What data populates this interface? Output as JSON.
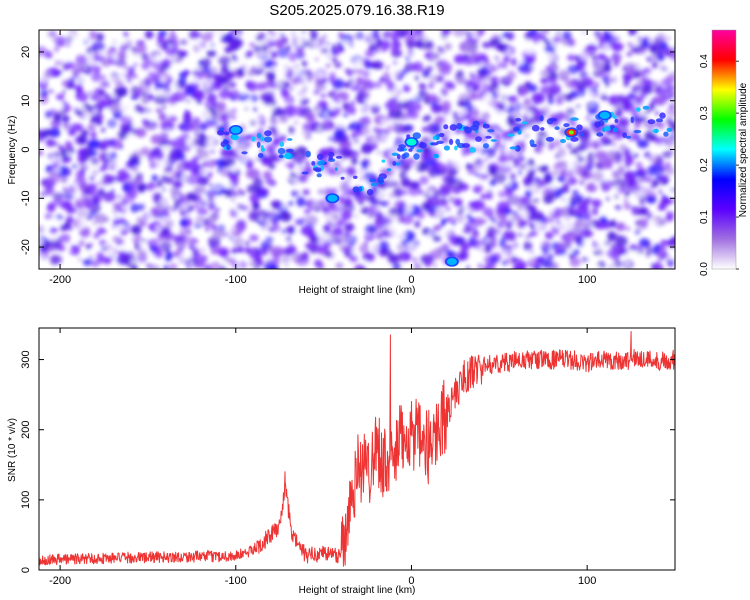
{
  "title": "S205.2025.079.16.38.R19",
  "chart_data": [
    {
      "type": "heatmap",
      "title": "S205.2025.079.16.38.R19",
      "xlabel": "Height of straight line (km)",
      "ylabel": "Frequency (Hz)",
      "xlim": [
        -212,
        150
      ],
      "ylim": [
        -24.5,
        24.5
      ],
      "x_ticks": [
        "-200",
        "-100",
        "0",
        "100"
      ],
      "y_ticks": [
        "-20",
        "-10",
        "0",
        "10",
        "20"
      ],
      "colorbar": {
        "label": "Normalized spectral amplitude",
        "range": [
          0,
          0.46
        ],
        "ticks": [
          "0.0",
          "0.1",
          "0.2",
          "0.3",
          "0.4"
        ],
        "colors": [
          "#ffffff",
          "#a070e0",
          "#5a00ff",
          "#0000ff",
          "#00ffff",
          "#00ff00",
          "#ffff00",
          "#ff0000",
          "#ff00a0"
        ]
      },
      "features": [
        {
          "x": 91,
          "y": 3.5,
          "amplitude": 0.44
        },
        {
          "x": 0,
          "y": 1.5,
          "amplitude": 0.2
        },
        {
          "x": -100,
          "y": 4,
          "amplitude": 0.15
        },
        {
          "x": 110,
          "y": 7,
          "amplitude": 0.15
        },
        {
          "x": 23,
          "y": -23,
          "amplitude": 0.15
        },
        {
          "x": -45,
          "y": -10,
          "amplitude": 0.12
        }
      ],
      "grid": false
    },
    {
      "type": "line",
      "xlabel": "Height of straight line (km)",
      "ylabel": "SNR (10 * v/v)",
      "xlim": [
        -212,
        150
      ],
      "ylim": [
        0,
        345
      ],
      "x_ticks": [
        "-200",
        "-100",
        "0",
        "100"
      ],
      "y_ticks": [
        "0",
        "100",
        "200",
        "300"
      ],
      "line_color": "#ee3333",
      "series": [
        {
          "x": [
            -212,
            -150,
            -100,
            -90,
            -80,
            -75,
            -72,
            -68,
            -60,
            -50,
            -42,
            -38,
            -35,
            -30,
            -25,
            -20,
            -15,
            -10,
            -5,
            0,
            5,
            10,
            15,
            20,
            25,
            30,
            40,
            50,
            60,
            70,
            80,
            90,
            100,
            110,
            120,
            130,
            140,
            150
          ],
          "values": [
            15,
            18,
            20,
            28,
            50,
            62,
            120,
            50,
            20,
            25,
            20,
            40,
            100,
            150,
            140,
            180,
            150,
            160,
            190,
            200,
            180,
            175,
            205,
            225,
            250,
            275,
            290,
            295,
            298,
            300,
            300,
            300,
            295,
            300,
            298,
            302,
            298,
            300
          ],
          "peaks": [
            {
              "x": -72,
              "y": 140
            },
            {
              "x": -12,
              "y": 335
            },
            {
              "x": 125,
              "y": 340
            }
          ]
        }
      ],
      "grid": false
    }
  ]
}
